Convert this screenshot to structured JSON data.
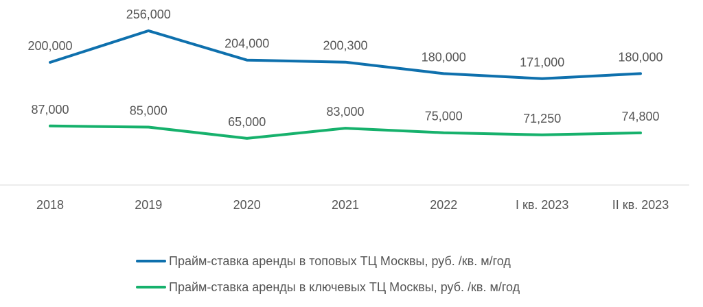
{
  "chart_data": {
    "type": "line",
    "categories": [
      "2018",
      "2019",
      "2020",
      "2021",
      "2022",
      "I кв. 2023",
      "II кв. 2023"
    ],
    "series": [
      {
        "name": "Прайм-ставка аренды в топовых ТЦ Москвы, руб. /кв. м/год",
        "color": "#0e70ad",
        "values": [
          200000,
          256000,
          204000,
          200300,
          180000,
          171000,
          180000
        ],
        "labels": [
          "200,000",
          "256,000",
          "204,000",
          "200,300",
          "180,000",
          "171,000",
          "180,000"
        ]
      },
      {
        "name": "Прайм-ставка аренды в ключевых ТЦ Москвы, руб. /кв. м/год",
        "color": "#16b16c",
        "values": [
          87000,
          85000,
          65000,
          83000,
          75000,
          71250,
          74800
        ],
        "labels": [
          "87,000",
          "85,000",
          "65,000",
          "83,000",
          "75,000",
          "71,250",
          "74,800"
        ]
      }
    ],
    "title": "",
    "xlabel": "",
    "ylabel": "",
    "ylim": [
      -2000,
      262000
    ],
    "grid": false,
    "legend": "bottom"
  }
}
